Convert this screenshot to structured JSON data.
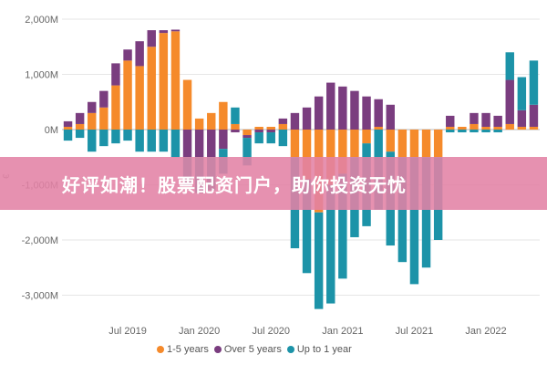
{
  "banner": {
    "text": "好评如潮！股票配资门户，助你投资无忧",
    "color": "#e282a5"
  },
  "chart_data": {
    "type": "bar",
    "stacked": true,
    "ylabel": "€",
    "ylim": [
      -3300,
      2000
    ],
    "yticks": [
      {
        "value": 2000,
        "label": "2,000M"
      },
      {
        "value": 1000,
        "label": "1,000M"
      },
      {
        "value": 0,
        "label": "0M"
      },
      {
        "value": -1000,
        "label": "-1,000M"
      },
      {
        "value": -2000,
        "label": "-2,000M"
      },
      {
        "value": -3000,
        "label": "-3,000M"
      }
    ],
    "xticks": [
      {
        "index": 5,
        "label": "Jul 2019"
      },
      {
        "index": 11,
        "label": "Jan 2020"
      },
      {
        "index": 17,
        "label": "Jul 2020"
      },
      {
        "index": 23,
        "label": "Jan 2021"
      },
      {
        "index": 29,
        "label": "Jul 2021"
      },
      {
        "index": 35,
        "label": "Jan 2022"
      }
    ],
    "grid": true,
    "legend_position": "bottom",
    "series": [
      {
        "name": "1-5 years",
        "color": "#f58a2b",
        "values": [
          50,
          100,
          300,
          400,
          800,
          1250,
          1150,
          1500,
          1750,
          1780,
          900,
          200,
          300,
          500,
          100,
          -100,
          50,
          50,
          100,
          -500,
          -900,
          -1500,
          -1000,
          -800,
          -500,
          -250,
          50,
          -400,
          -500,
          -500,
          -500,
          -500,
          50,
          50,
          100,
          50,
          50,
          100,
          50,
          50
        ]
      },
      {
        "name": "Over 5 years",
        "color": "#7a3d7f",
        "values": [
          100,
          200,
          200,
          300,
          400,
          200,
          450,
          300,
          50,
          30,
          -500,
          -500,
          -500,
          -350,
          -50,
          -50,
          -50,
          -50,
          100,
          300,
          400,
          600,
          850,
          780,
          700,
          600,
          500,
          450,
          0,
          0,
          0,
          0,
          200,
          0,
          200,
          250,
          200,
          800,
          300,
          400
        ]
      },
      {
        "name": "Up to 1 year",
        "color": "#1c93a8",
        "values": [
          -200,
          -150,
          -400,
          -300,
          -250,
          -200,
          -400,
          -400,
          -400,
          -500,
          -500,
          -650,
          -600,
          -450,
          300,
          -500,
          -200,
          -200,
          -300,
          -1650,
          -1700,
          -1750,
          -2150,
          -1900,
          -1450,
          -1500,
          -1450,
          -1700,
          -1900,
          -2300,
          -2000,
          -1500,
          -50,
          -50,
          -50,
          -50,
          -50,
          500,
          600,
          800
        ]
      }
    ]
  }
}
